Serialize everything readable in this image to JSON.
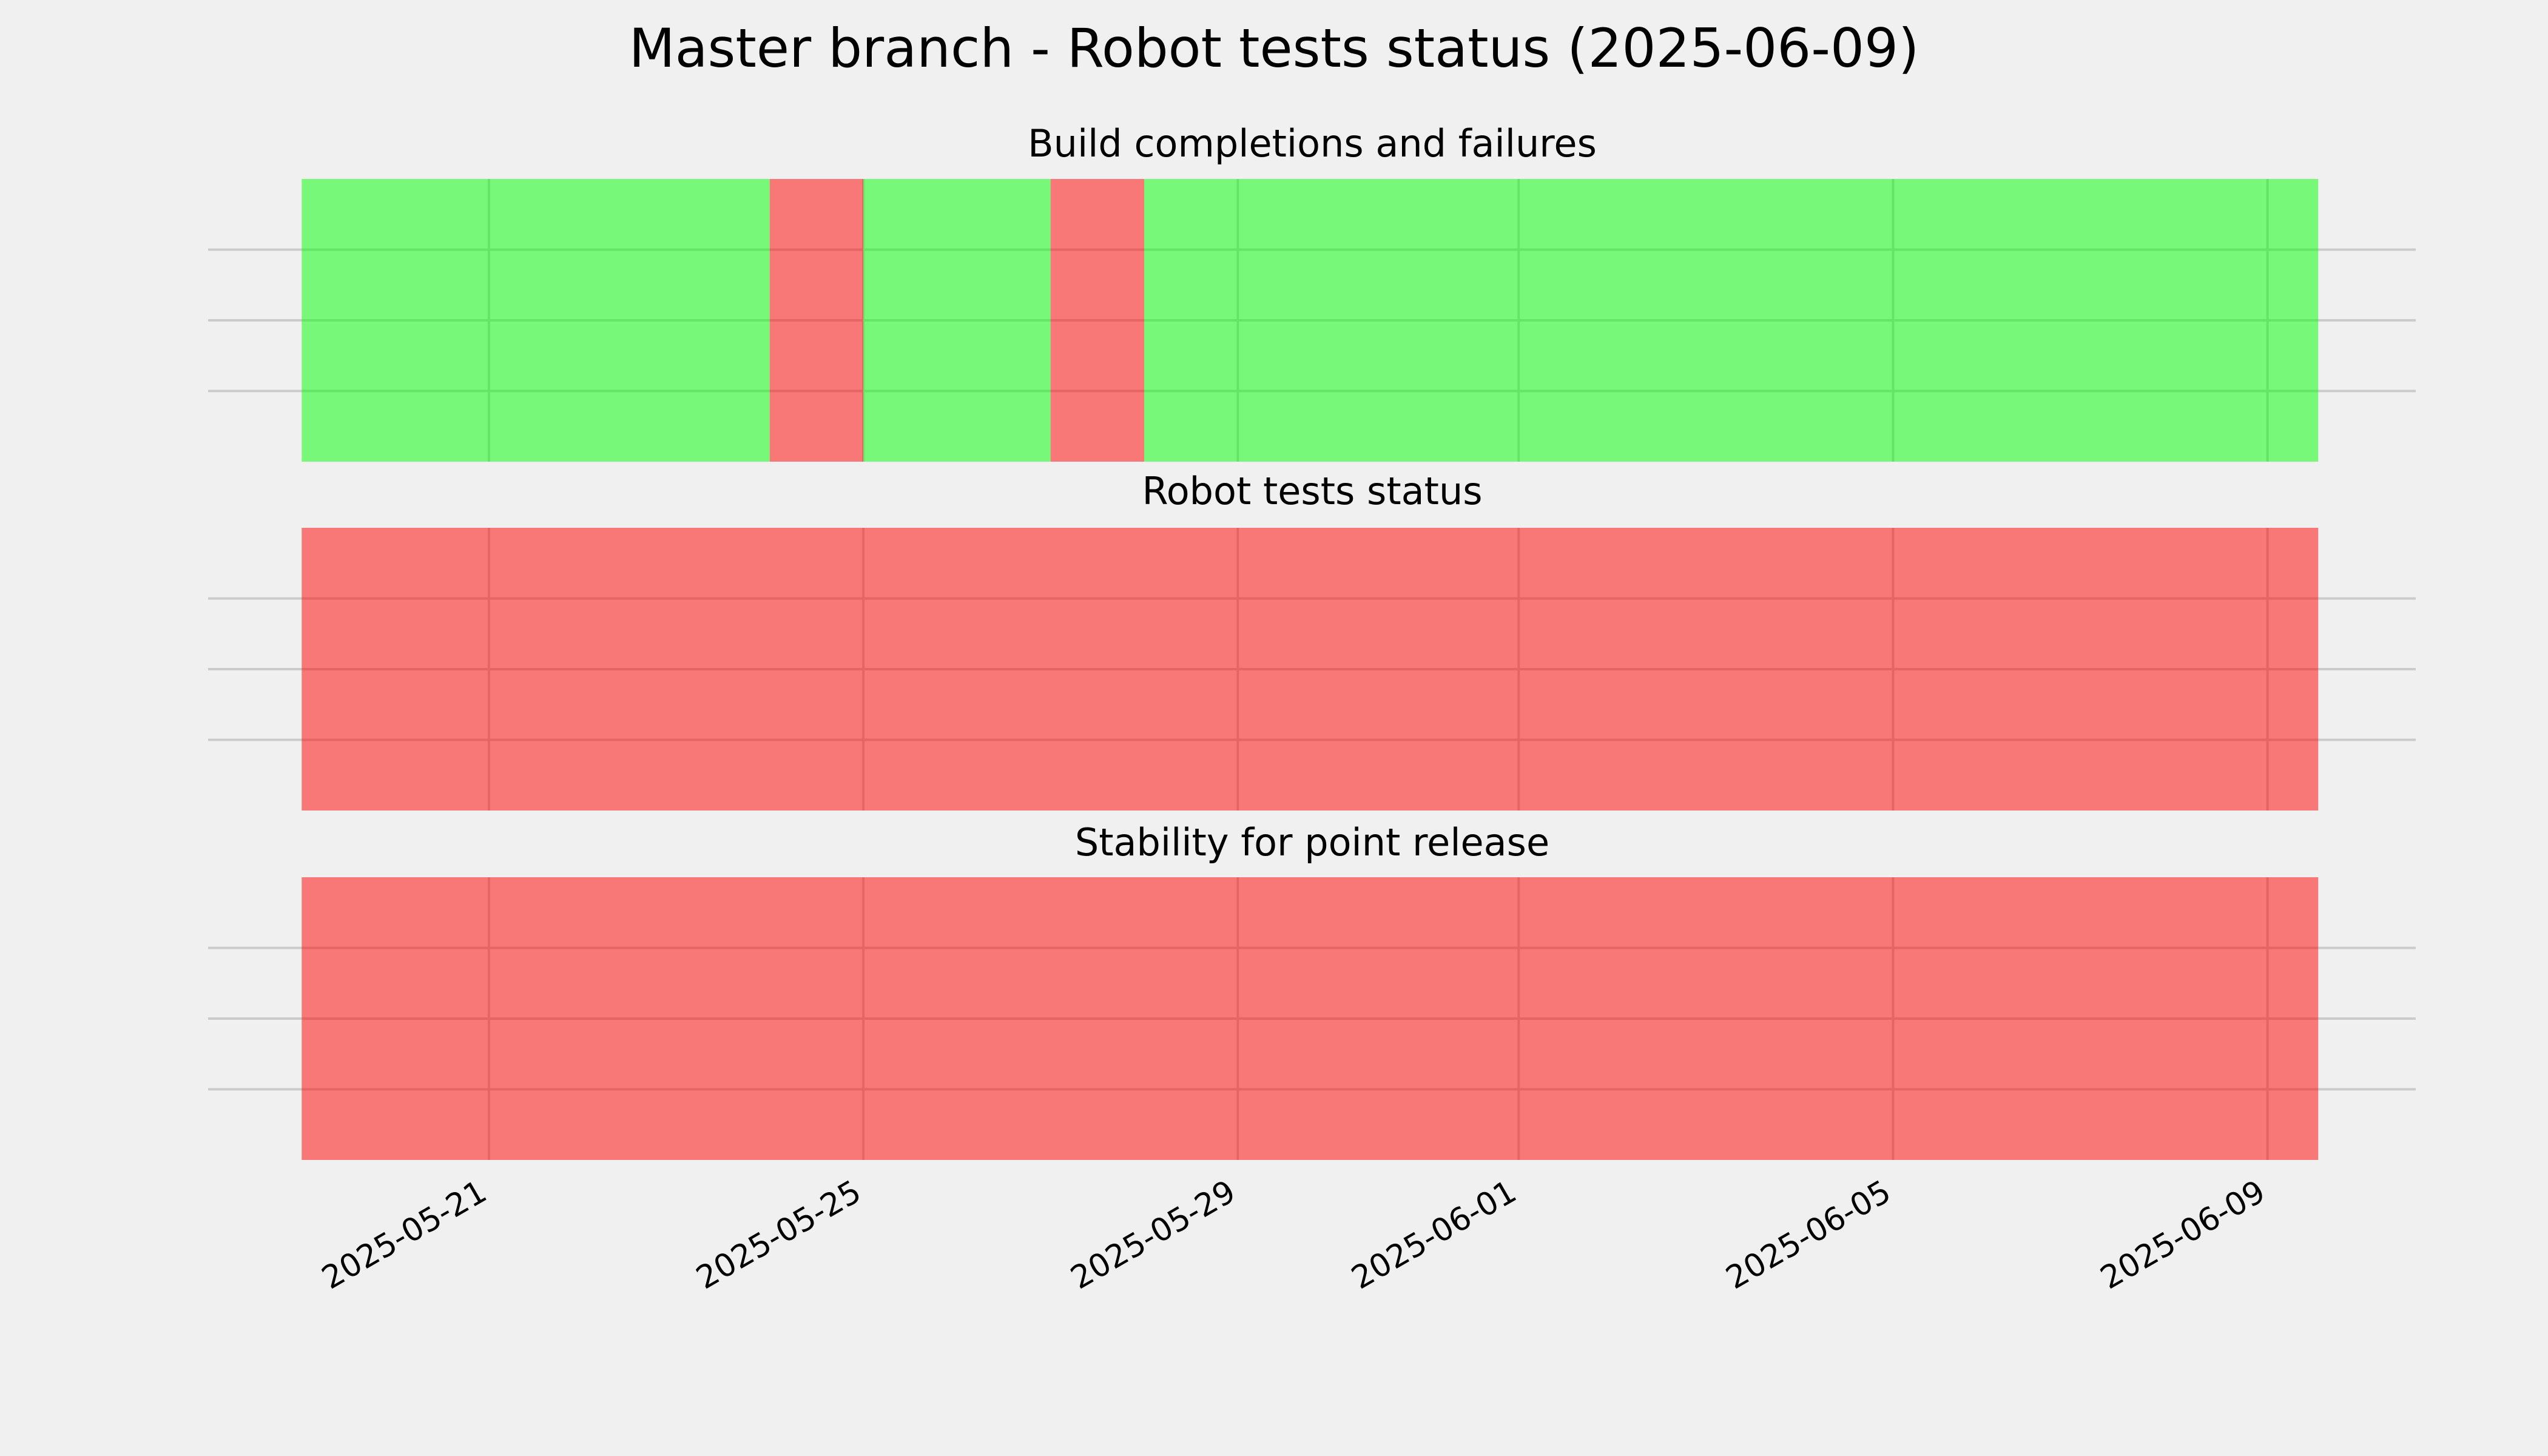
{
  "title": "Master branch - Robot tests status (2025-06-09)",
  "xlim": [
    "2025-05-18",
    "2025-06-10T14:00"
  ],
  "xticks": [
    "2025-05-21",
    "2025-05-25",
    "2025-05-29",
    "2025-06-01",
    "2025-06-05",
    "2025-06-09"
  ],
  "grid": true,
  "chart_data": [
    {
      "type": "span",
      "title": "Build completions and failures",
      "ylim": [
        0,
        1
      ],
      "yticks": [
        0.25,
        0.5,
        0.75
      ],
      "spans": [
        {
          "start": "2025-05-19",
          "end": "2025-05-24",
          "color": "#00ff00",
          "alpha": 0.5
        },
        {
          "start": "2025-05-24",
          "end": "2025-05-25",
          "color": "#ff0000",
          "alpha": 0.5
        },
        {
          "start": "2025-05-25",
          "end": "2025-05-27",
          "color": "#00ff00",
          "alpha": 0.5
        },
        {
          "start": "2025-05-27",
          "end": "2025-05-28",
          "color": "#ff0000",
          "alpha": 0.5
        },
        {
          "start": "2025-05-28",
          "end": "2025-06-09T13:00",
          "color": "#00ff00",
          "alpha": 0.5
        }
      ]
    },
    {
      "type": "span",
      "title": "Robot tests status",
      "ylim": [
        0,
        1
      ],
      "yticks": [
        0.25,
        0.5,
        0.75
      ],
      "spans": [
        {
          "start": "2025-05-19",
          "end": "2025-06-09T13:00",
          "color": "#ff0000",
          "alpha": 0.5
        }
      ]
    },
    {
      "type": "span",
      "title": "Stability for point release",
      "ylim": [
        0,
        1
      ],
      "yticks": [
        0.25,
        0.5,
        0.75
      ],
      "spans": [
        {
          "start": "2025-05-19",
          "end": "2025-06-09T13:00",
          "color": "#ff0000",
          "alpha": 0.5
        }
      ]
    }
  ]
}
